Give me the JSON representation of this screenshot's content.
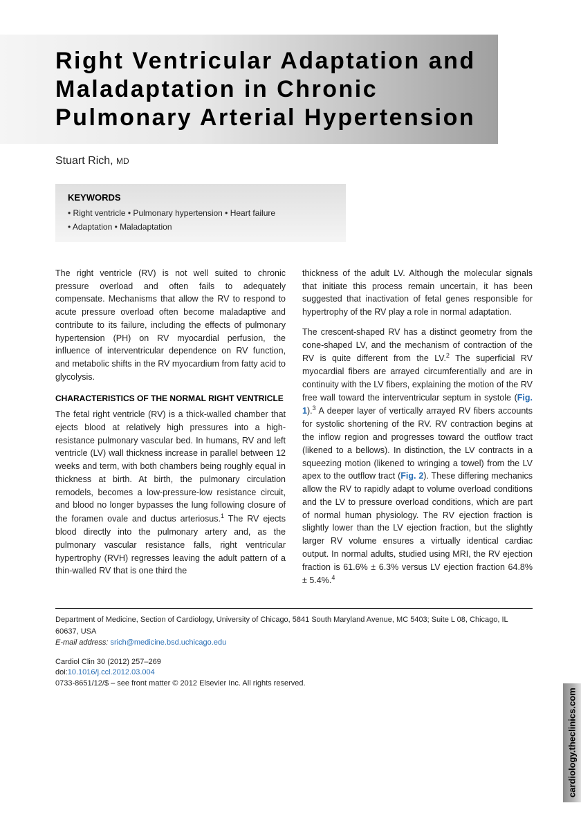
{
  "title": "Right Ventricular Adaptation and Maladaptation in Chronic Pulmonary Arterial Hypertension",
  "author": {
    "name": "Stuart Rich,",
    "degree": "MD"
  },
  "keywords": {
    "heading": "KEYWORDS",
    "items": "• Right ventricle • Pulmonary hypertension • Heart failure\n• Adaptation • Maladaptation"
  },
  "intro_para": "The right ventricle (RV) is not well suited to chronic pressure overload and often fails to adequately compensate. Mechanisms that allow the RV to respond to acute pressure overload often become maladaptive and contribute to its failure, including the effects of pulmonary hypertension (PH) on RV myocardial perfusion, the influence of interventricular dependence on RV function, and metabolic shifts in the RV myocardium from fatty acid to glycolysis.",
  "section1_heading": "CHARACTERISTICS OF THE NORMAL RIGHT VENTRICLE",
  "section1_para1_a": "The fetal right ventricle (RV) is a thick-walled chamber that ejects blood at relatively high pressures into a high-resistance pulmonary vascular bed. In humans, RV and left ventricle (LV) wall thickness increase in parallel between 12 weeks and term, with both chambers being roughly equal in thickness at birth. At birth, the pulmonary circulation remodels, becomes a low-pressure-low resistance circuit, and blood no longer bypasses the lung following closure of the foramen ovale and ductus arteriosus.",
  "section1_para1_b": " The RV ejects blood directly into the pulmonary artery and, as the pulmonary vascular resistance falls, right ventricular hypertrophy (RVH) regresses leaving the adult pattern of a thin-walled RV that is one third the",
  "col2_para1": "thickness of the adult LV. Although the molecular signals that initiate this process remain uncertain, it has been suggested that inactivation of fetal genes responsible for hypertrophy of the RV play a role in normal adaptation.",
  "col2_para2_a": "The crescent-shaped RV has a distinct geometry from the cone-shaped LV, and the mechanism of contraction of the RV is quite different from the LV.",
  "col2_para2_b": " The superficial RV myocardial fibers are arrayed circumferentially and are in continuity with the LV fibers, explaining the motion of the RV free wall toward the interventricular septum in systole (",
  "fig1": "Fig. 1",
  "col2_para2_c": ").",
  "col2_para2_d": " A deeper layer of vertically arrayed RV fibers accounts for systolic shortening of the RV. RV contraction begins at the inflow region and progresses toward the outflow tract (likened to a bellows). In distinction, the LV contracts in a squeezing motion (likened to wringing a towel) from the LV apex to the outflow tract (",
  "fig2": "Fig. 2",
  "col2_para2_e": "). These differing mechanics allow the RV to rapidly adapt to volume overload conditions and the LV to pressure overload conditions, which are part of normal human physiology. The RV ejection fraction is slightly lower than the LV ejection fraction, but the slightly larger RV volume ensures a virtually identical cardiac output. In normal adults, studied using MRI, the RV ejection fraction is 61.6% ± 6.3% versus LV ejection fraction 64.8% ± 5.4%.",
  "footer": {
    "affiliation": "Department of Medicine, Section of Cardiology, University of Chicago, 5841 South Maryland Avenue, MC 5403; Suite L 08, Chicago, IL 60637, USA",
    "email_label": "E-mail address:",
    "email": "srich@medicine.bsd.uchicago.edu",
    "citation": "Cardiol Clin 30 (2012) 257–269",
    "doi_label": "doi:",
    "doi": "10.1016/j.ccl.2012.03.004",
    "copyright": "0733-8651/12/$ – see front matter © 2012 Elsevier Inc. All rights reserved."
  },
  "side_tab": "cardiology.theclinics.com",
  "refs": {
    "r1": "1",
    "r2": "2",
    "r3": "3",
    "r4": "4"
  }
}
